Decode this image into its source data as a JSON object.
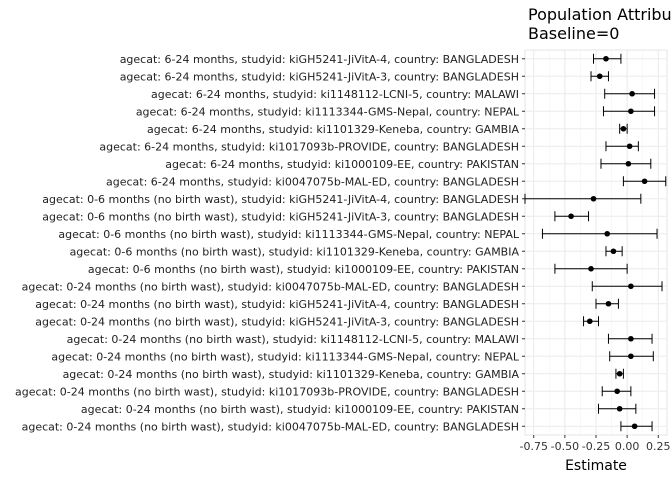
{
  "chart_data": {
    "type": "forest",
    "title": "Population Attribut",
    "subtitle": "Baseline=0",
    "xlabel": "Estimate",
    "ylabel": "",
    "xlim": [
      -0.82,
      0.32
    ],
    "x_ticks": [
      -0.75,
      -0.5,
      -0.25,
      0.0,
      0.25
    ],
    "x_tick_labels": [
      "-0.75",
      "-0.50",
      "-0.25",
      "0.00",
      "0.25"
    ],
    "grid": true,
    "rows": [
      {
        "label": "agecat: 6-24 months, studyid: kiGH5241-JiVitA-4, country: BANGLADESH",
        "estimate": -0.17,
        "lower": -0.27,
        "upper": -0.05
      },
      {
        "label": "agecat: 6-24 months, studyid: kiGH5241-JiVitA-3, country: BANGLADESH",
        "estimate": -0.22,
        "lower": -0.29,
        "upper": -0.15
      },
      {
        "label": "agecat: 6-24 months, studyid: ki1148112-LCNI-5, country: MALAWI",
        "estimate": 0.04,
        "lower": -0.18,
        "upper": 0.22
      },
      {
        "label": "agecat: 6-24 months, studyid: ki1113344-GMS-Nepal, country: NEPAL",
        "estimate": 0.03,
        "lower": -0.19,
        "upper": 0.22
      },
      {
        "label": "agecat: 6-24 months, studyid: ki1101329-Keneba, country: GAMBIA",
        "estimate": -0.03,
        "lower": -0.06,
        "upper": 0.0
      },
      {
        "label": "agecat: 6-24 months, studyid: ki1017093b-PROVIDE, country: BANGLADESH",
        "estimate": 0.02,
        "lower": -0.17,
        "upper": 0.09
      },
      {
        "label": "agecat: 6-24 months, studyid: ki1000109-EE, country: PAKISTAN",
        "estimate": 0.01,
        "lower": -0.21,
        "upper": 0.19
      },
      {
        "label": "agecat: 6-24 months, studyid: ki0047075b-MAL-ED, country: BANGLADESH",
        "estimate": 0.14,
        "lower": -0.03,
        "upper": 0.31
      },
      {
        "label": "agecat: 0-6 months (no birth wast), studyid: kiGH5241-JiVitA-4, country: BANGLADESH",
        "estimate": -0.27,
        "lower": -0.82,
        "upper": 0.11
      },
      {
        "label": "agecat: 0-6 months (no birth wast), studyid: kiGH5241-JiVitA-3, country: BANGLADESH",
        "estimate": -0.45,
        "lower": -0.58,
        "upper": -0.31
      },
      {
        "label": "agecat: 0-6 months (no birth wast), studyid: ki1113344-GMS-Nepal, country: NEPAL",
        "estimate": -0.16,
        "lower": -0.68,
        "upper": 0.24
      },
      {
        "label": "agecat: 0-6 months (no birth wast), studyid: ki1101329-Keneba, country: GAMBIA",
        "estimate": -0.11,
        "lower": -0.17,
        "upper": -0.04
      },
      {
        "label": "agecat: 0-6 months (no birth wast), studyid: ki1000109-EE, country: PAKISTAN",
        "estimate": -0.29,
        "lower": -0.58,
        "upper": 0.0
      },
      {
        "label": "agecat: 0-24 months (no birth wast), studyid: ki0047075b-MAL-ED, country: BANGLADESH",
        "estimate": 0.03,
        "lower": -0.28,
        "upper": 0.28
      },
      {
        "label": "agecat: 0-24 months (no birth wast), studyid: kiGH5241-JiVitA-4, country: BANGLADESH",
        "estimate": -0.15,
        "lower": -0.25,
        "upper": -0.07
      },
      {
        "label": "agecat: 0-24 months (no birth wast), studyid: kiGH5241-JiVitA-3, country: BANGLADESH",
        "estimate": -0.3,
        "lower": -0.35,
        "upper": -0.23
      },
      {
        "label": "agecat: 0-24 months (no birth wast), studyid: ki1148112-LCNI-5, country: MALAWI",
        "estimate": 0.03,
        "lower": -0.15,
        "upper": 0.2
      },
      {
        "label": "agecat: 0-24 months (no birth wast), studyid: ki1113344-GMS-Nepal, country: NEPAL",
        "estimate": 0.03,
        "lower": -0.14,
        "upper": 0.21
      },
      {
        "label": "agecat: 0-24 months (no birth wast), studyid: ki1101329-Keneba, country: GAMBIA",
        "estimate": -0.06,
        "lower": -0.09,
        "upper": -0.03
      },
      {
        "label": "agecat: 0-24 months (no birth wast), studyid: ki1017093b-PROVIDE, country: BANGLADESH",
        "estimate": -0.08,
        "lower": -0.2,
        "upper": 0.03
      },
      {
        "label": "agecat: 0-24 months (no birth wast), studyid: ki1000109-EE, country: PAKISTAN",
        "estimate": -0.06,
        "lower": -0.23,
        "upper": 0.07
      },
      {
        "label": "agecat: 0-24 months (no birth wast), studyid: ki0047075b-MAL-ED, country: BANGLADESH",
        "estimate": 0.06,
        "lower": -0.05,
        "upper": 0.2
      }
    ]
  }
}
